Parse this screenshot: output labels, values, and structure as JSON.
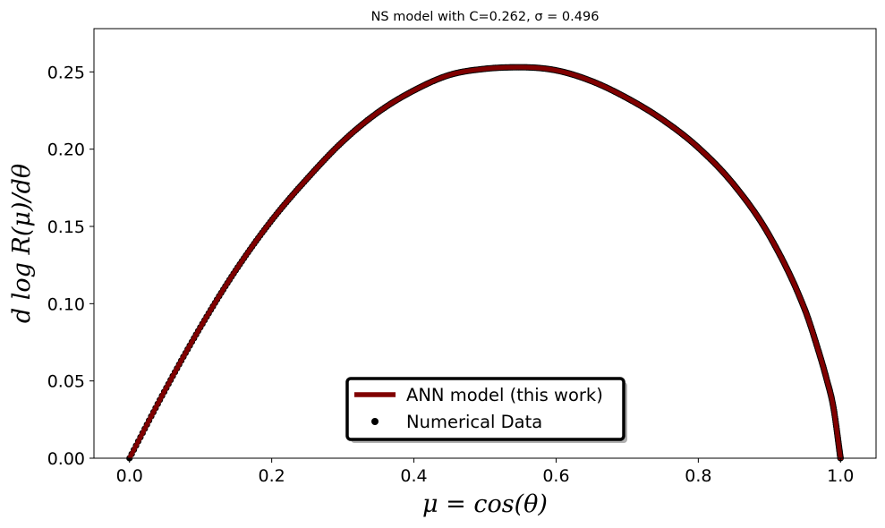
{
  "chart_data": {
    "type": "line",
    "title": "NS model with C=0.262, σ = 0.496",
    "xlabel": "μ = cos(θ)",
    "ylabel": "d log R(μ)/dθ",
    "xlim": [
      -0.05,
      1.05
    ],
    "ylim": [
      0.0,
      0.278
    ],
    "x_ticks": [
      0.0,
      0.2,
      0.4,
      0.6,
      0.8,
      1.0
    ],
    "x_tick_labels": [
      "0.0",
      "0.2",
      "0.4",
      "0.6",
      "0.8",
      "1.0"
    ],
    "y_ticks": [
      0.0,
      0.05,
      0.1,
      0.15,
      0.2,
      0.25
    ],
    "y_tick_labels": [
      "0.00",
      "0.05",
      "0.10",
      "0.15",
      "0.20",
      "0.25"
    ],
    "grid": false,
    "legend_position": "lower-center",
    "series": [
      {
        "name": "ANN model (this work)",
        "style": "line",
        "color": "#800000",
        "x": [
          0.0,
          0.05,
          0.1,
          0.15,
          0.2,
          0.25,
          0.3,
          0.35,
          0.4,
          0.45,
          0.5,
          0.55,
          0.6,
          0.65,
          0.7,
          0.75,
          0.8,
          0.85,
          0.9,
          0.95,
          0.97,
          0.98,
          0.99,
          1.0
        ],
        "y": [
          0.0,
          0.044,
          0.085,
          0.122,
          0.154,
          0.181,
          0.205,
          0.224,
          0.238,
          0.248,
          0.252,
          0.253,
          0.251,
          0.244,
          0.233,
          0.219,
          0.201,
          0.177,
          0.144,
          0.096,
          0.068,
          0.052,
          0.033,
          0.0
        ]
      },
      {
        "name": "Numerical Data",
        "style": "scatter",
        "color": "#000000",
        "x": [
          0.0,
          0.05,
          0.1,
          0.15,
          0.2,
          0.25,
          0.3,
          0.35,
          0.4,
          0.45,
          0.5,
          0.55,
          0.6,
          0.65,
          0.7,
          0.75,
          0.8,
          0.85,
          0.9,
          0.95,
          0.97,
          0.98,
          0.99,
          1.0
        ],
        "y": [
          0.0,
          0.044,
          0.085,
          0.122,
          0.154,
          0.181,
          0.205,
          0.224,
          0.238,
          0.248,
          0.252,
          0.253,
          0.251,
          0.244,
          0.233,
          0.219,
          0.201,
          0.177,
          0.144,
          0.096,
          0.068,
          0.052,
          0.033,
          0.0
        ]
      }
    ]
  }
}
